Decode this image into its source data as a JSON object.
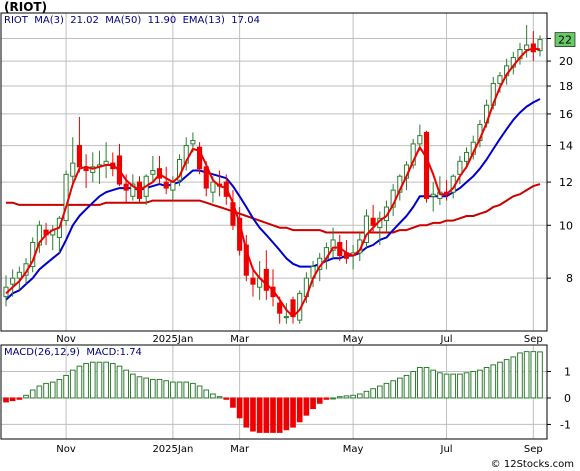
{
  "title": "(RIOT)",
  "watermark": "© 12Stocks.com",
  "colors": {
    "up": "#2e7d32",
    "down": "#ee0000",
    "ma3": "#ee0000",
    "ma50": "#cc0000",
    "ema13": "#0000cc",
    "macd": "#2e7d32",
    "label_box": "#66cc66",
    "frame": "#000000",
    "grid": "#bfbfbf"
  },
  "legend": {
    "ticker": "RIOT",
    "ma3": "MA(3)",
    "ma3_value": "21.02",
    "ma50": "MA(50)",
    "ma50_value": "11.90",
    "ema13": "EMA(13)",
    "ema13_value": "17.04"
  },
  "macd_legend": {
    "label": "MACD(26,12,9)",
    "value_label": "MACD:1.74"
  },
  "last_price_label": "22",
  "chart_data": [
    {
      "type": "candlestick",
      "name": "price",
      "scale": "log",
      "ylim": [
        6.4,
        24.5
      ],
      "ytick_labels": [
        "8",
        "10",
        "12",
        "14",
        "16",
        "18",
        "20",
        "22"
      ],
      "yticks": [
        8,
        10,
        12,
        14,
        16,
        18,
        20,
        22
      ],
      "xaxis_labels": [
        {
          "label": "Nov",
          "index": 9
        },
        {
          "label": "2025Jan",
          "index": 25
        },
        {
          "label": "Mar",
          "index": 35
        },
        {
          "label": "May",
          "index": 52
        },
        {
          "label": "Jul",
          "index": 66
        },
        {
          "label": "Sep",
          "index": 79
        }
      ],
      "candles": [
        [
          7.4,
          8.1,
          7.1,
          7.7
        ],
        [
          7.8,
          8.3,
          7.4,
          8.0
        ],
        [
          8.0,
          8.4,
          7.6,
          8.2
        ],
        [
          8.1,
          8.7,
          7.8,
          8.5
        ],
        [
          8.4,
          9.5,
          8.2,
          9.3
        ],
        [
          9.2,
          10.2,
          8.9,
          10.0
        ],
        [
          9.8,
          10.1,
          9.2,
          9.6
        ],
        [
          9.6,
          10.0,
          9.0,
          9.8
        ],
        [
          9.5,
          10.4,
          8.9,
          10.3
        ],
        [
          10.2,
          12.6,
          10.0,
          12.4
        ],
        [
          12.3,
          14.5,
          11.8,
          13.0
        ],
        [
          14.0,
          15.8,
          12.5,
          12.8
        ],
        [
          12.7,
          13.5,
          11.7,
          12.6
        ],
        [
          12.5,
          13.6,
          12.0,
          12.8
        ],
        [
          12.8,
          13.7,
          11.9,
          12.9
        ],
        [
          12.9,
          14.2,
          12.2,
          13.1
        ],
        [
          13.0,
          13.6,
          12.3,
          12.7
        ],
        [
          13.4,
          14.1,
          11.8,
          11.9
        ],
        [
          11.9,
          12.4,
          11.0,
          11.6
        ],
        [
          11.3,
          12.4,
          11.1,
          11.9
        ],
        [
          12.0,
          12.3,
          11.0,
          11.2
        ],
        [
          11.3,
          12.4,
          10.9,
          12.3
        ],
        [
          12.4,
          13.4,
          12.0,
          12.6
        ],
        [
          12.7,
          13.4,
          11.9,
          12.2
        ],
        [
          12.0,
          12.8,
          11.4,
          11.7
        ],
        [
          11.6,
          12.3,
          11.1,
          12.0
        ],
        [
          12.1,
          13.5,
          11.8,
          13.2
        ],
        [
          13.0,
          14.5,
          12.6,
          14.0
        ],
        [
          14.1,
          14.8,
          13.6,
          14.3
        ],
        [
          13.9,
          14.2,
          12.4,
          12.7
        ],
        [
          12.8,
          13.1,
          11.3,
          11.7
        ],
        [
          11.5,
          12.3,
          11.0,
          12.0
        ],
        [
          11.9,
          12.6,
          11.3,
          11.8
        ],
        [
          12.0,
          12.4,
          10.9,
          11.3
        ],
        [
          11.0,
          11.6,
          9.8,
          10.0
        ],
        [
          10.3,
          10.8,
          8.8,
          9.0
        ],
        [
          9.2,
          9.6,
          7.9,
          8.1
        ],
        [
          8.0,
          8.4,
          7.4,
          7.8
        ],
        [
          7.7,
          8.6,
          7.3,
          8.0
        ],
        [
          8.3,
          9.0,
          7.3,
          7.6
        ],
        [
          7.7,
          8.3,
          7.1,
          7.4
        ],
        [
          7.2,
          7.4,
          6.6,
          6.9
        ],
        [
          6.8,
          7.2,
          6.6,
          6.8
        ],
        [
          7.3,
          7.4,
          6.6,
          6.8
        ],
        [
          6.7,
          7.6,
          6.6,
          7.5
        ],
        [
          7.4,
          8.2,
          7.2,
          8.0
        ],
        [
          8.0,
          8.6,
          7.7,
          8.4
        ],
        [
          8.3,
          8.9,
          7.9,
          8.7
        ],
        [
          8.7,
          9.3,
          8.3,
          9.1
        ],
        [
          9.0,
          9.9,
          8.7,
          9.4
        ],
        [
          9.3,
          9.6,
          8.6,
          8.8
        ],
        [
          8.9,
          9.4,
          8.5,
          8.7
        ],
        [
          8.8,
          9.2,
          8.3,
          8.9
        ],
        [
          8.9,
          9.7,
          8.6,
          9.4
        ],
        [
          9.3,
          10.7,
          9.1,
          10.4
        ],
        [
          10.3,
          10.9,
          9.7,
          10.0
        ],
        [
          9.9,
          10.6,
          9.2,
          10.3
        ],
        [
          10.2,
          11.1,
          9.7,
          10.8
        ],
        [
          10.8,
          11.9,
          10.4,
          11.6
        ],
        [
          11.5,
          12.4,
          11.1,
          12.3
        ],
        [
          12.2,
          13.1,
          11.6,
          12.9
        ],
        [
          12.9,
          14.4,
          12.7,
          14.1
        ],
        [
          14.1,
          15.3,
          13.7,
          14.6
        ],
        [
          14.8,
          14.9,
          11.0,
          11.2
        ],
        [
          11.3,
          12.0,
          10.6,
          11.4
        ],
        [
          11.2,
          12.3,
          10.9,
          11.5
        ],
        [
          11.5,
          12.1,
          11.1,
          11.4
        ],
        [
          11.5,
          12.4,
          11.2,
          12.3
        ],
        [
          12.4,
          13.4,
          11.9,
          13.1
        ],
        [
          13.1,
          13.9,
          12.7,
          13.6
        ],
        [
          13.5,
          14.6,
          13.2,
          14.2
        ],
        [
          14.3,
          15.6,
          13.9,
          15.3
        ],
        [
          15.4,
          17.0,
          15.1,
          16.6
        ],
        [
          16.6,
          18.7,
          16.3,
          18.2
        ],
        [
          18.2,
          19.1,
          17.5,
          18.8
        ],
        [
          18.8,
          20.2,
          18.1,
          19.6
        ],
        [
          19.5,
          20.8,
          18.9,
          20.3
        ],
        [
          20.2,
          21.6,
          19.7,
          21.0
        ],
        [
          21.0,
          23.3,
          20.3,
          21.4
        ],
        [
          21.5,
          22.7,
          20.0,
          20.8
        ],
        [
          20.9,
          22.3,
          20.4,
          21.9
        ]
      ],
      "ma3": [
        7.5,
        7.7,
        7.9,
        8.2,
        8.6,
        9.3,
        9.6,
        9.8,
        9.9,
        10.8,
        11.9,
        12.7,
        12.8,
        12.7,
        12.8,
        12.9,
        12.9,
        12.6,
        12.1,
        11.8,
        11.6,
        11.8,
        12.0,
        12.4,
        12.2,
        12.0,
        12.3,
        13.1,
        13.8,
        13.7,
        12.9,
        12.1,
        11.8,
        11.7,
        11.0,
        10.1,
        9.0,
        8.3,
        8.0,
        7.8,
        7.6,
        7.3,
        7.0,
        6.8,
        7.0,
        7.4,
        8.0,
        8.4,
        8.7,
        9.1,
        9.1,
        8.9,
        8.8,
        9.0,
        9.6,
        9.9,
        10.2,
        10.4,
        10.9,
        11.6,
        12.3,
        13.1,
        13.9,
        13.3,
        12.4,
        11.4,
        11.4,
        11.7,
        12.3,
        12.8,
        13.6,
        14.4,
        15.4,
        16.7,
        17.9,
        18.9,
        19.6,
        20.3,
        20.9,
        21.1,
        21.0
      ],
      "ema13": [
        7.3,
        7.5,
        7.6,
        7.8,
        8.0,
        8.3,
        8.5,
        8.7,
        8.9,
        9.4,
        10.0,
        10.4,
        10.7,
        11.0,
        11.3,
        11.5,
        11.6,
        11.7,
        11.7,
        11.7,
        11.6,
        11.7,
        11.8,
        11.9,
        11.8,
        11.9,
        12.0,
        12.3,
        12.6,
        12.6,
        12.5,
        12.4,
        12.3,
        12.2,
        11.8,
        11.3,
        10.8,
        10.3,
        9.9,
        9.6,
        9.3,
        9.0,
        8.7,
        8.5,
        8.4,
        8.4,
        8.4,
        8.5,
        8.6,
        8.7,
        8.7,
        8.8,
        8.8,
        8.9,
        9.1,
        9.2,
        9.4,
        9.5,
        9.8,
        10.1,
        10.4,
        10.8,
        11.3,
        11.3,
        11.3,
        11.3,
        11.3,
        11.5,
        11.7,
        12.0,
        12.3,
        12.7,
        13.2,
        13.8,
        14.4,
        15.0,
        15.6,
        16.1,
        16.5,
        16.8,
        17.04
      ],
      "ma50": [
        11.0,
        11.0,
        10.9,
        10.9,
        10.9,
        10.9,
        10.9,
        10.9,
        10.9,
        10.9,
        10.9,
        10.9,
        10.9,
        10.9,
        10.9,
        11.0,
        11.0,
        11.0,
        11.0,
        11.0,
        11.0,
        11.0,
        11.1,
        11.1,
        11.1,
        11.1,
        11.1,
        11.1,
        11.1,
        11.1,
        11.0,
        10.9,
        10.8,
        10.7,
        10.6,
        10.5,
        10.4,
        10.3,
        10.2,
        10.1,
        10.0,
        9.9,
        9.9,
        9.8,
        9.8,
        9.8,
        9.8,
        9.8,
        9.7,
        9.7,
        9.7,
        9.7,
        9.7,
        9.7,
        9.7,
        9.7,
        9.7,
        9.7,
        9.7,
        9.8,
        9.8,
        9.9,
        10.0,
        10.0,
        10.1,
        10.1,
        10.2,
        10.2,
        10.3,
        10.4,
        10.4,
        10.5,
        10.6,
        10.8,
        10.9,
        11.1,
        11.3,
        11.4,
        11.6,
        11.8,
        11.9
      ]
    },
    {
      "type": "bar",
      "name": "MACD(26,12,9)",
      "ylim": [
        -1.55,
        2.0
      ],
      "yticks": [
        -1,
        0,
        1
      ],
      "ytick_labels": [
        "-1",
        "0",
        "1"
      ],
      "values": [
        -0.15,
        -0.1,
        -0.05,
        0.1,
        0.3,
        0.45,
        0.55,
        0.6,
        0.7,
        0.85,
        1.05,
        1.2,
        1.3,
        1.35,
        1.35,
        1.35,
        1.3,
        1.2,
        1.05,
        0.9,
        0.8,
        0.75,
        0.7,
        0.7,
        0.65,
        0.6,
        0.6,
        0.6,
        0.55,
        0.45,
        0.3,
        0.15,
        0.05,
        -0.05,
        -0.35,
        -0.75,
        -1.1,
        -1.25,
        -1.3,
        -1.3,
        -1.3,
        -1.3,
        -1.2,
        -1.1,
        -0.9,
        -0.65,
        -0.4,
        -0.2,
        -0.05,
        0.0,
        0.05,
        0.08,
        0.1,
        0.15,
        0.25,
        0.35,
        0.45,
        0.55,
        0.65,
        0.75,
        0.85,
        1.0,
        1.15,
        1.15,
        1.05,
        0.95,
        0.9,
        0.9,
        0.9,
        0.95,
        1.0,
        1.05,
        1.15,
        1.25,
        1.35,
        1.45,
        1.55,
        1.7,
        1.75,
        1.75,
        1.74
      ]
    }
  ]
}
